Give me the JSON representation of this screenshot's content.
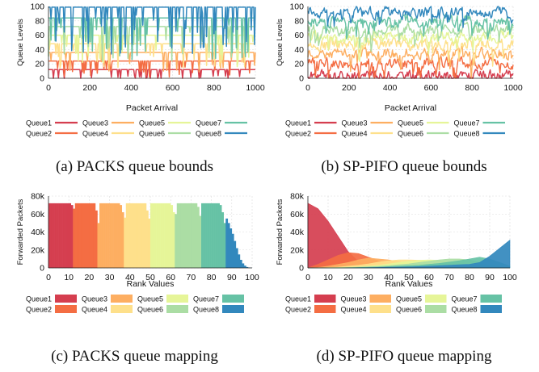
{
  "panel_a": {
    "caption": "(a) PACKS queue bounds"
  },
  "panel_b": {
    "caption": "(b) SP-PIFO queue bounds"
  },
  "panel_c": {
    "caption": "(c) PACKS queue mapping"
  },
  "panel_d": {
    "caption": "(d) SP-PIFO queue mapping"
  },
  "legend_entries": [
    "Queue1",
    "Queue2",
    "Queue3",
    "Queue4",
    "Queue5",
    "Queue6",
    "Queue7",
    "Queue8"
  ],
  "colors": {
    "Queue1": "#d53e4f",
    "Queue2": "#f46d43",
    "Queue3": "#fdae61",
    "Queue4": "#fee08b",
    "Queue5": "#e6f598",
    "Queue6": "#abdda4",
    "Queue7": "#66c2a5",
    "Queue8": "#3288bd"
  },
  "chart_data": [
    {
      "type": "line",
      "id": "a",
      "xlabel": "Packet Arrival",
      "ylabel": "Queue Levels",
      "xlim": [
        0,
        1000
      ],
      "ylim": [
        0,
        100
      ],
      "xticks": [
        0,
        200,
        400,
        600,
        800,
        1000
      ],
      "yticks": [
        0,
        20,
        40,
        60,
        80,
        100
      ],
      "grid": true,
      "legend": "below",
      "series": [
        {
          "name": "Queue1",
          "base": 12
        },
        {
          "name": "Queue2",
          "base": 24
        },
        {
          "name": "Queue3",
          "base": 36
        },
        {
          "name": "Queue4",
          "base": 48
        },
        {
          "name": "Queue5",
          "base": 60
        },
        {
          "name": "Queue6",
          "base": 72
        },
        {
          "name": "Queue7",
          "base": 84
        },
        {
          "name": "Queue8",
          "base": 99
        }
      ]
    },
    {
      "type": "line",
      "id": "b",
      "xlabel": "Packet Arrival",
      "ylabel": "Queue Levels",
      "xlim": [
        0,
        1000
      ],
      "ylim": [
        0,
        100
      ],
      "xticks": [
        0,
        200,
        400,
        600,
        800,
        1000
      ],
      "yticks": [
        0,
        20,
        40,
        60,
        80,
        100
      ],
      "grid": true,
      "legend": "below",
      "series": [
        {
          "name": "Queue1",
          "base": 3
        },
        {
          "name": "Queue2",
          "base": 22
        },
        {
          "name": "Queue3",
          "base": 35
        },
        {
          "name": "Queue4",
          "base": 48
        },
        {
          "name": "Queue5",
          "base": 58
        },
        {
          "name": "Queue6",
          "base": 68
        },
        {
          "name": "Queue7",
          "base": 80
        },
        {
          "name": "Queue8",
          "base": 92
        }
      ]
    },
    {
      "type": "bar",
      "id": "c",
      "xlabel": "Rank Values",
      "ylabel": "Forwarded Packets",
      "xlim": [
        0,
        100
      ],
      "ylim": [
        0,
        80000
      ],
      "xticks": [
        0,
        10,
        20,
        30,
        40,
        50,
        60,
        70,
        80,
        90,
        100
      ],
      "yticks": [
        0,
        20000,
        40000,
        60000,
        80000
      ],
      "ytick_labels": [
        "0",
        "20k",
        "40k",
        "60k",
        "80k"
      ],
      "grid": true,
      "legend": "below",
      "queue_ranges": [
        [
          0,
          12
        ],
        [
          12,
          24
        ],
        [
          24,
          37
        ],
        [
          37,
          50
        ],
        [
          50,
          62
        ],
        [
          62,
          75
        ],
        [
          75,
          87
        ],
        [
          87,
          100
        ]
      ],
      "rank_values": [
        0,
        1,
        2,
        3,
        4,
        5,
        6,
        7,
        8,
        9,
        10,
        11,
        12,
        13,
        14,
        15,
        16,
        17,
        18,
        19,
        20,
        21,
        22,
        23,
        24,
        25,
        26,
        27,
        28,
        29,
        30,
        31,
        32,
        33,
        34,
        35,
        36,
        37,
        38,
        39,
        40,
        41,
        42,
        43,
        44,
        45,
        46,
        47,
        48,
        49,
        50,
        51,
        52,
        53,
        54,
        55,
        56,
        57,
        58,
        59,
        60,
        61,
        62,
        63,
        64,
        65,
        66,
        67,
        68,
        69,
        70,
        71,
        72,
        73,
        74,
        75,
        76,
        77,
        78,
        79,
        80,
        81,
        82,
        83,
        84,
        85,
        86,
        87,
        88,
        89,
        90,
        91,
        92,
        93,
        94,
        95,
        96,
        97,
        98,
        99
      ],
      "packets": [
        72000,
        72000,
        72000,
        72000,
        72000,
        72000,
        72000,
        72000,
        72000,
        72000,
        72000,
        70000,
        66000,
        72000,
        72000,
        72000,
        72000,
        72000,
        72000,
        72000,
        72000,
        72000,
        72000,
        64000,
        50000,
        72000,
        72000,
        72000,
        72000,
        72000,
        72000,
        72000,
        72000,
        72000,
        72000,
        70000,
        62000,
        56000,
        72000,
        72000,
        72000,
        72000,
        72000,
        72000,
        72000,
        72000,
        72000,
        72000,
        64000,
        55000,
        72000,
        72000,
        72000,
        72000,
        72000,
        72000,
        72000,
        72000,
        72000,
        72000,
        70000,
        62000,
        60000,
        72000,
        72000,
        72000,
        72000,
        72000,
        72000,
        72000,
        72000,
        72000,
        72000,
        68000,
        58000,
        72000,
        72000,
        72000,
        72000,
        72000,
        72000,
        72000,
        72000,
        72000,
        70000,
        62000,
        50000,
        55000,
        50000,
        44000,
        38000,
        30000,
        22000,
        15000,
        9000,
        5000,
        2500,
        1000,
        400,
        100
      ]
    },
    {
      "type": "area",
      "id": "d",
      "xlabel": "Rank Values",
      "ylabel": "Forwarded Packets",
      "xlim": [
        0,
        100
      ],
      "ylim": [
        0,
        80000
      ],
      "xticks": [
        0,
        10,
        20,
        30,
        40,
        50,
        60,
        70,
        80,
        90,
        100
      ],
      "yticks": [
        0,
        20000,
        40000,
        60000,
        80000
      ],
      "ytick_labels": [
        "0",
        "20k",
        "40k",
        "60k",
        "80k"
      ],
      "grid": true,
      "legend": "below",
      "x": [
        0,
        5,
        10,
        15,
        20,
        25,
        30,
        35,
        40,
        45,
        50,
        55,
        60,
        65,
        70,
        75,
        80,
        85,
        90,
        95,
        100
      ],
      "series": [
        {
          "name": "Queue1",
          "values": [
            72000,
            66000,
            52000,
            35000,
            18000,
            7000,
            2000,
            500,
            0,
            0,
            0,
            0,
            0,
            0,
            0,
            0,
            0,
            0,
            0,
            0,
            0
          ]
        },
        {
          "name": "Queue2",
          "values": [
            0,
            4000,
            9000,
            14000,
            17000,
            16000,
            12000,
            8000,
            4000,
            1500,
            500,
            0,
            0,
            0,
            0,
            0,
            0,
            0,
            0,
            0,
            0
          ]
        },
        {
          "name": "Queue3",
          "values": [
            0,
            500,
            2000,
            4000,
            6000,
            9000,
            11000,
            10000,
            9000,
            7000,
            5000,
            3000,
            1500,
            500,
            0,
            0,
            0,
            0,
            0,
            0,
            0
          ]
        },
        {
          "name": "Queue4",
          "values": [
            0,
            0,
            500,
            1000,
            2000,
            3000,
            4500,
            6500,
            8000,
            9000,
            9000,
            8500,
            7000,
            5000,
            3000,
            1500,
            500,
            0,
            0,
            0,
            0
          ]
        },
        {
          "name": "Queue5",
          "values": [
            0,
            0,
            0,
            500,
            800,
            1200,
            2000,
            3000,
            4500,
            6000,
            7500,
            8500,
            9000,
            8500,
            7000,
            5000,
            3000,
            1500,
            500,
            0,
            0
          ]
        },
        {
          "name": "Queue6",
          "values": [
            0,
            0,
            0,
            0,
            500,
            800,
            1200,
            1800,
            2500,
            3500,
            4500,
            6000,
            7500,
            9000,
            10000,
            10000,
            9000,
            6000,
            3000,
            1000,
            0
          ]
        },
        {
          "name": "Queue7",
          "values": [
            0,
            0,
            0,
            0,
            0,
            500,
            800,
            1000,
            1500,
            2000,
            2500,
            3000,
            4000,
            5000,
            6500,
            8000,
            10000,
            12000,
            10000,
            6000,
            2000
          ]
        },
        {
          "name": "Queue8",
          "values": [
            0,
            0,
            0,
            0,
            0,
            0,
            300,
            500,
            700,
            1000,
            1200,
            1500,
            2000,
            2500,
            3000,
            3500,
            4000,
            6000,
            13000,
            22000,
            31000
          ]
        }
      ]
    }
  ]
}
